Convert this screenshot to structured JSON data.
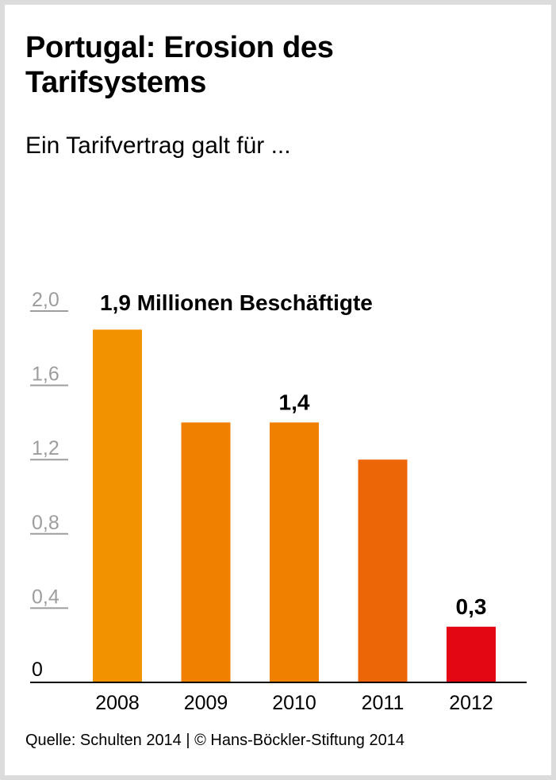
{
  "header": {
    "title_line1": "Portugal: Erosion des",
    "title_line2": "Tarifsystems",
    "subtitle": "Ein Tarifvertrag galt für ..."
  },
  "footer": {
    "source": "Quelle: Schulten 2014 | © Hans-Böckler-Stiftung 2014"
  },
  "chart_data": {
    "type": "bar",
    "title": "Portugal: Erosion des Tarifsystems",
    "subtitle": "Ein Tarifvertrag galt für ...",
    "xlabel": "",
    "ylabel": "Millionen Beschäftigte",
    "categories": [
      "2008",
      "2009",
      "2010",
      "2011",
      "2012"
    ],
    "values": [
      1.9,
      1.4,
      1.4,
      1.2,
      0.3
    ],
    "colors": [
      "#f39200",
      "#f08000",
      "#f08000",
      "#ec6608",
      "#e30613"
    ],
    "ylim": [
      0,
      2.0
    ],
    "yticks": [
      0,
      0.4,
      0.8,
      1.2,
      1.6,
      2.0
    ],
    "ytick_labels": [
      "0",
      "0,4",
      "0,8",
      "1,2",
      "1,6",
      "2,0"
    ],
    "data_labels": [
      {
        "index": 0,
        "text": "1,9 Millionen Beschäftigte"
      },
      {
        "index": 2,
        "text": "1,4"
      },
      {
        "index": 4,
        "text": "0,3"
      }
    ]
  }
}
